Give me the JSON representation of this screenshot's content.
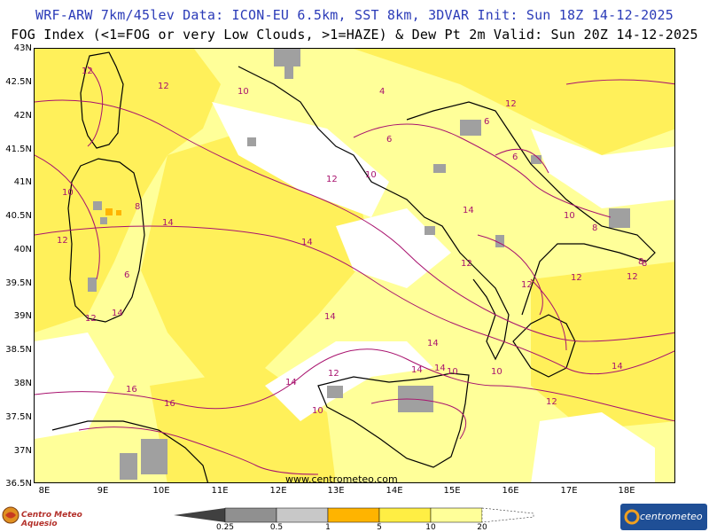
{
  "header": {
    "line1": "WRF-ARW 7km/45lev   Data: ICON-EU 6.5km, SST 8km, 3DVAR   Init: Sun 18Z 14-12-2025",
    "line2": "FOG Index (<1=FOG or very Low Clouds, >1=HAZE) & Dew Pt 2m   Valid: Sun 20Z 14-12-2025"
  },
  "axes": {
    "lat_labels": [
      "43N",
      "42.5N",
      "42N",
      "41.5N",
      "41N",
      "40.5N",
      "40N",
      "39.5N",
      "39N",
      "38.5N",
      "38N",
      "37.5N",
      "37N",
      "36.5N"
    ],
    "lon_labels": [
      "8E",
      "9E",
      "10E",
      "11E",
      "12E",
      "13E",
      "14E",
      "15E",
      "16E",
      "17E",
      "18E"
    ]
  },
  "contour_labels": [
    "12",
    "12",
    "14",
    "10",
    "10",
    "8",
    "6",
    "8",
    "12",
    "14",
    "14",
    "12",
    "14",
    "14",
    "16",
    "16",
    "12",
    "10",
    "12",
    "14",
    "10",
    "14",
    "6",
    "6",
    "8",
    "10",
    "12",
    "12",
    "12",
    "14",
    "12",
    "10",
    "14",
    "12",
    "14",
    "12",
    "8",
    "4",
    "6",
    "10"
  ],
  "credit": "www.centrometeo.com",
  "logos": {
    "left_text": "Centro Meteo Aquesio",
    "right_text": "centrometeo"
  },
  "legend": {
    "labels": [
      "0.25",
      "0.5",
      "1",
      "5",
      "10",
      "20"
    ],
    "colors": [
      "#404040",
      "#909090",
      "#c8c8c8",
      "#ffb400",
      "#ffee44",
      "#ffff99"
    ]
  },
  "colors": {
    "land_outline": "#000000",
    "dewpoint_contour": "#a8126e",
    "haze_light": "#ffff99",
    "haze_mid": "#ffee44",
    "fog_grey": "#a0a0a0"
  }
}
